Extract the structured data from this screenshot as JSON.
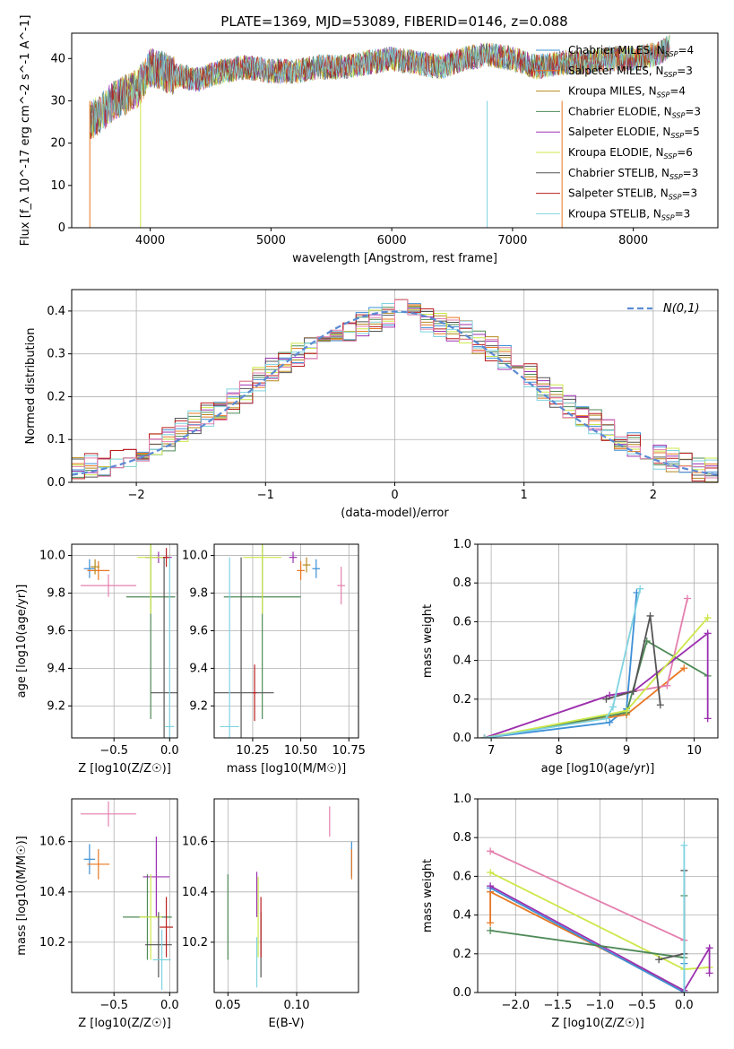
{
  "title": "PLATE=1369, MJD=53089, FIBERID=0146, z=0.088",
  "colors": [
    "#3d8fd6",
    "#e87722",
    "#b5891b",
    "#4e8a57",
    "#9b30b0",
    "#cde84a",
    "#555555",
    "#bb1f1f",
    "#7fd3e0",
    "#e47fae"
  ],
  "legend_model_lines": [
    {
      "label": "Chabrier MILES, N",
      "sub": "SSP",
      "value": "=4",
      "color": "#3d8fd6"
    },
    {
      "label": "Salpeter MILES, N",
      "sub": "SSP",
      "value": "=3",
      "color": "#e87722"
    },
    {
      "label": "Kroupa MILES, N",
      "sub": "SSP",
      "value": "=4",
      "color": "#b5891b"
    },
    {
      "label": "Chabrier ELODIE, N",
      "sub": "SSP",
      "value": "=3",
      "color": "#4e8a57"
    },
    {
      "label": "Salpeter ELODIE, N",
      "sub": "SSP",
      "value": "=5",
      "color": "#9b30b0"
    },
    {
      "label": "Kroupa ELODIE, N",
      "sub": "SSP",
      "value": "=6",
      "color": "#cde84a"
    },
    {
      "label": "Chabrier STELIB, N",
      "sub": "SSP",
      "value": "=3",
      "color": "#555555"
    },
    {
      "label": "Salpeter STELIB, N",
      "sub": "SSP",
      "value": "=3",
      "color": "#bb1f1f"
    },
    {
      "label": "Kroupa STELIB, N",
      "sub": "SSP",
      "value": "=3",
      "color": "#7fd3e0"
    }
  ],
  "chart_data": [
    {
      "id": "spectrum",
      "type": "line",
      "xlabel": "wavelength [Angstrom, rest frame]",
      "ylabel": "Flux [f_λ 10^-17 erg cm^-2 s^-1 A^-1]",
      "xlim": [
        3350,
        8700
      ],
      "ylim": [
        0,
        46
      ],
      "xticks": [
        4000,
        5000,
        6000,
        7000,
        8000
      ],
      "yticks": [
        0,
        10,
        20,
        30,
        40
      ],
      "grid": false,
      "legend": "top-right",
      "x": [
        3500,
        3700,
        3900,
        4000,
        4200,
        4400,
        4600,
        4800,
        5000,
        5200,
        5400,
        5600,
        5800,
        6000,
        6200,
        6400,
        6600,
        6800,
        7000,
        7200,
        7400,
        7600,
        7800,
        8000,
        8200,
        8300
      ],
      "y": [
        25,
        30,
        33,
        38,
        36,
        35,
        37,
        38,
        37,
        37,
        38,
        38,
        39,
        40,
        39,
        38,
        40,
        41,
        40,
        38,
        39,
        39,
        40,
        40,
        41,
        43
      ]
    },
    {
      "id": "residual_histogram",
      "type": "histogram",
      "xlabel": "(data-model)/error",
      "ylabel": "Normed distribution",
      "xlim": [
        -2.5,
        2.5
      ],
      "ylim": [
        0,
        0.45
      ],
      "xticks": [
        -2,
        -1,
        0,
        1,
        2
      ],
      "yticks": [
        0.0,
        0.1,
        0.2,
        0.3,
        0.4
      ],
      "grid": true,
      "legend": "top-right",
      "reference": {
        "name": "N(0,1)",
        "style": "dashed",
        "color": "#5b8ad3"
      },
      "bin_width": 0.1,
      "values": [
        0.03,
        0.04,
        0.04,
        0.05,
        0.06,
        0.07,
        0.09,
        0.1,
        0.12,
        0.14,
        0.16,
        0.17,
        0.19,
        0.21,
        0.24,
        0.26,
        0.28,
        0.3,
        0.31,
        0.33,
        0.35,
        0.36,
        0.37,
        0.38,
        0.39,
        0.4,
        0.39,
        0.38,
        0.37,
        0.36,
        0.35,
        0.33,
        0.31,
        0.29,
        0.27,
        0.25,
        0.22,
        0.2,
        0.18,
        0.16,
        0.14,
        0.12,
        0.1,
        0.09,
        0.07,
        0.06,
        0.05,
        0.04,
        0.03,
        0.03
      ]
    },
    {
      "id": "age_vs_Z",
      "type": "scatter",
      "xlabel": "Z [log10(Z/Z☉)]",
      "ylabel": "age  [log10(age/yr)]",
      "xlim": [
        -0.88,
        0.07
      ],
      "ylim": [
        9.03,
        10.06
      ],
      "xticks": [
        -0.5,
        0.0
      ],
      "yticks": [
        9.2,
        9.4,
        9.6,
        9.8,
        10.0
      ],
      "grid": true,
      "points": [
        {
          "x": -0.72,
          "y": 9.93,
          "xerr": 0.05,
          "yerr": 0.05,
          "c": 0
        },
        {
          "x": -0.64,
          "y": 9.92,
          "xerr": 0.1,
          "yerr": 0.05,
          "c": 1
        },
        {
          "x": -0.55,
          "y": 9.84,
          "xerr": 0.25,
          "yerr": 0.06,
          "c": 9
        },
        {
          "x": -0.67,
          "y": 9.94,
          "xerr": 0.04,
          "yerr": 0.04,
          "c": 2
        },
        {
          "x": -0.17,
          "y": 9.78,
          "xerr": 0.22,
          "yerr": 0.65,
          "c": 3
        },
        {
          "x": -0.1,
          "y": 9.99,
          "xerr": 0.12,
          "yerr": 0.03,
          "c": 4
        },
        {
          "x": -0.17,
          "y": 9.99,
          "xerr": 0.12,
          "yerr": 0.3,
          "c": 5
        },
        {
          "x": -0.05,
          "y": 9.27,
          "xerr": 0.12,
          "yerr": 0.72,
          "c": 6
        },
        {
          "x": -0.03,
          "y": 9.99,
          "xerr": 0.03,
          "yerr": 0.05,
          "c": 7
        },
        {
          "x": 0.0,
          "y": 9.09,
          "xerr": 0.04,
          "yerr": 0.9,
          "c": 8
        }
      ]
    },
    {
      "id": "age_vs_mass",
      "type": "scatter",
      "xlabel": "mass [log10(M/M☉)]",
      "xlim": [
        10.05,
        10.8
      ],
      "ylim": [
        9.03,
        10.06
      ],
      "xticks": [
        10.25,
        10.5,
        10.75
      ],
      "yticks": [
        9.2,
        9.4,
        9.6,
        9.8,
        10.0
      ],
      "grid": true,
      "points": [
        {
          "x": 10.58,
          "y": 9.93,
          "xerr": 0.02,
          "yerr": 0.05,
          "c": 0
        },
        {
          "x": 10.5,
          "y": 9.92,
          "xerr": 0.02,
          "yerr": 0.05,
          "c": 1
        },
        {
          "x": 10.71,
          "y": 9.84,
          "xerr": 0.02,
          "yerr": 0.1,
          "c": 9
        },
        {
          "x": 10.53,
          "y": 9.95,
          "xerr": 0.02,
          "yerr": 0.04,
          "c": 2
        },
        {
          "x": 10.3,
          "y": 9.78,
          "xerr": 0.2,
          "yerr": 0.65,
          "c": 3
        },
        {
          "x": 10.46,
          "y": 9.99,
          "xerr": 0.02,
          "yerr": 0.03,
          "c": 4
        },
        {
          "x": 10.3,
          "y": 9.99,
          "xerr": 0.1,
          "yerr": 0.3,
          "c": 5
        },
        {
          "x": 10.19,
          "y": 9.27,
          "xerr": 0.17,
          "yerr": 0.72,
          "c": 6
        },
        {
          "x": 10.26,
          "y": 9.27,
          "xerr": 0.01,
          "yerr": 0.15,
          "c": 7
        },
        {
          "x": 10.13,
          "y": 9.09,
          "xerr": 0.05,
          "yerr": 0.9,
          "c": 8
        }
      ]
    },
    {
      "id": "weight_vs_age",
      "type": "line",
      "xlabel": "age  [log10(age/yr)]",
      "ylabel": "mass weight",
      "xlim": [
        6.8,
        10.35
      ],
      "ylim": [
        0,
        1.0
      ],
      "xticks": [
        7,
        8,
        9,
        10
      ],
      "yticks": [
        0.0,
        0.2,
        0.4,
        0.6,
        0.8,
        1.0
      ],
      "grid": true,
      "series": [
        {
          "c": 0,
          "x": [
            6.9,
            8.75,
            9.0,
            9.15
          ],
          "y": [
            0.0,
            0.08,
            0.15,
            0.75
          ]
        },
        {
          "c": 1,
          "x": [
            6.9,
            9.0,
            9.85
          ],
          "y": [
            0.0,
            0.12,
            0.36
          ]
        },
        {
          "c": 9,
          "x": [
            6.9,
            8.75,
            9.6,
            9.9
          ],
          "y": [
            0.0,
            0.22,
            0.27,
            0.72
          ]
        },
        {
          "c": 3,
          "x": [
            6.9,
            9.0,
            9.3,
            10.2
          ],
          "y": [
            0.0,
            0.13,
            0.5,
            0.32
          ]
        },
        {
          "c": 4,
          "x": [
            6.9,
            8.75,
            9.1,
            10.2,
            10.2
          ],
          "y": [
            0.0,
            0.22,
            0.24,
            0.54,
            0.1
          ]
        },
        {
          "c": 5,
          "x": [
            6.9,
            9.0,
            10.2
          ],
          "y": [
            0.0,
            0.14,
            0.62
          ]
        },
        {
          "c": 6,
          "x": [
            8.7,
            9.1,
            9.35,
            9.5
          ],
          "y": [
            0.2,
            0.24,
            0.63,
            0.17
          ]
        },
        {
          "c": 8,
          "x": [
            6.9,
            8.7,
            8.8,
            9.2
          ],
          "y": [
            0.0,
            0.1,
            0.16,
            0.77
          ]
        }
      ]
    },
    {
      "id": "mass_vs_Z",
      "type": "scatter",
      "xlabel": "Z [log10(Z/Z☉)]",
      "ylabel": "mass [log10(M/M☉)]",
      "xlim": [
        -0.88,
        0.07
      ],
      "ylim": [
        10.0,
        10.77
      ],
      "xticks": [
        -0.5,
        0.0
      ],
      "yticks": [
        10.2,
        10.4,
        10.6
      ],
      "grid": true,
      "points": [
        {
          "x": -0.72,
          "y": 10.53,
          "xerr": 0.05,
          "yerr": 0.06,
          "c": 0
        },
        {
          "x": -0.64,
          "y": 10.51,
          "xerr": 0.1,
          "yerr": 0.06,
          "c": 1
        },
        {
          "x": -0.55,
          "y": 10.71,
          "xerr": 0.25,
          "yerr": 0.05,
          "c": 9
        },
        {
          "x": -0.2,
          "y": 10.3,
          "xerr": 0.22,
          "yerr": 0.17,
          "c": 3
        },
        {
          "x": -0.12,
          "y": 10.46,
          "xerr": 0.12,
          "yerr": 0.16,
          "c": 4
        },
        {
          "x": -0.17,
          "y": 10.3,
          "xerr": 0.1,
          "yerr": 0.17,
          "c": 5
        },
        {
          "x": -0.1,
          "y": 10.19,
          "xerr": 0.12,
          "yerr": 0.13,
          "c": 6
        },
        {
          "x": -0.03,
          "y": 10.26,
          "xerr": 0.06,
          "yerr": 0.12,
          "c": 7
        },
        {
          "x": -0.07,
          "y": 10.13,
          "xerr": 0.08,
          "yerr": 0.12,
          "c": 8
        }
      ]
    },
    {
      "id": "mass_vs_EBV",
      "type": "scatter",
      "xlabel": "E(B-V)",
      "xlim": [
        0.04,
        0.145
      ],
      "ylim": [
        10.0,
        10.77
      ],
      "xticks": [
        0.05,
        0.1
      ],
      "yticks": [
        10.2,
        10.4,
        10.6
      ],
      "grid": true,
      "points": [
        {
          "x": 0.14,
          "y": 10.53,
          "yerr": 0.07,
          "c": 0
        },
        {
          "x": 0.14,
          "y": 10.51,
          "yerr": 0.06,
          "c": 1
        },
        {
          "x": 0.124,
          "y": 10.68,
          "yerr": 0.06,
          "c": 9
        },
        {
          "x": 0.05,
          "y": 10.3,
          "yerr": 0.17,
          "c": 3
        },
        {
          "x": 0.071,
          "y": 10.39,
          "yerr": 0.09,
          "c": 4
        },
        {
          "x": 0.072,
          "y": 10.3,
          "yerr": 0.16,
          "c": 5
        },
        {
          "x": 0.074,
          "y": 10.19,
          "yerr": 0.13,
          "c": 6
        },
        {
          "x": 0.074,
          "y": 10.26,
          "yerr": 0.12,
          "c": 7
        },
        {
          "x": 0.071,
          "y": 10.12,
          "yerr": 0.1,
          "c": 8
        }
      ]
    },
    {
      "id": "weight_vs_Z",
      "type": "line",
      "xlabel": "Z [log10(Z/Z☉)]",
      "ylabel": "mass weight",
      "xlim": [
        -2.45,
        0.4
      ],
      "ylim": [
        0,
        1.0
      ],
      "xticks": [
        -2.0,
        -1.5,
        -1.0,
        -0.5,
        0.0
      ],
      "yticks": [
        0.0,
        0.2,
        0.4,
        0.6,
        0.8,
        1.0
      ],
      "grid": true,
      "series": [
        {
          "c": 1,
          "x": [
            -2.3,
            -2.3,
            0.0
          ],
          "y": [
            0.36,
            0.52,
            0.01
          ]
        },
        {
          "c": 0,
          "x": [
            -2.3,
            0.0,
            0.0
          ],
          "y": [
            0.54,
            0.0,
            0.15
          ]
        },
        {
          "c": 9,
          "x": [
            -2.3,
            0.0
          ],
          "y": [
            0.73,
            0.27
          ]
        },
        {
          "c": 5,
          "x": [
            -2.3,
            0.0,
            0.3
          ],
          "y": [
            0.62,
            0.12,
            0.13
          ]
        },
        {
          "c": 4,
          "x": [
            -2.3,
            0.0,
            0.3,
            0.3
          ],
          "y": [
            0.55,
            0.01,
            0.23,
            0.1
          ]
        },
        {
          "c": 3,
          "x": [
            -2.3,
            0.0,
            0.0
          ],
          "y": [
            0.32,
            0.18,
            0.5
          ]
        },
        {
          "c": 6,
          "x": [
            -0.3,
            0.0,
            0.0
          ],
          "y": [
            0.17,
            0.2,
            0.63
          ]
        },
        {
          "c": 8,
          "x": [
            0.0,
            0.0
          ],
          "y": [
            0.0,
            0.76
          ]
        }
      ]
    }
  ]
}
